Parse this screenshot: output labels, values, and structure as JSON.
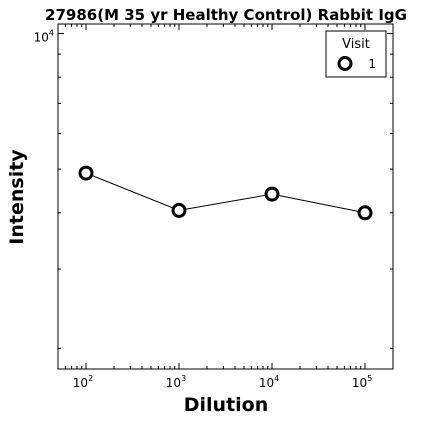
{
  "chart_data": {
    "type": "line",
    "title": "27986(M 35 yr Healthy Control) Rabbit IgG",
    "xlabel": "Dilution",
    "ylabel": "Intensity",
    "x_scale": "log",
    "y_scale": "log",
    "xlim": [
      50,
      200000
    ],
    "ylim": [
      1800,
      10500
    ],
    "x_ticks": [
      {
        "value": 100,
        "base": "10",
        "exp": "2"
      },
      {
        "value": 1000,
        "base": "10",
        "exp": "3"
      },
      {
        "value": 10000,
        "base": "10",
        "exp": "4"
      },
      {
        "value": 100000,
        "base": "10",
        "exp": "5"
      }
    ],
    "y_ticks": [
      {
        "value": 10000,
        "base": "10",
        "exp": "4"
      }
    ],
    "grid": false,
    "legend": {
      "title": "Visit",
      "placement": "top-right"
    },
    "series": [
      {
        "name": "1",
        "marker": "open-circle",
        "color": "#000000",
        "x": [
          100,
          1000,
          10000,
          100000
        ],
        "y": [
          4900,
          4050,
          4400,
          4000
        ]
      }
    ]
  }
}
